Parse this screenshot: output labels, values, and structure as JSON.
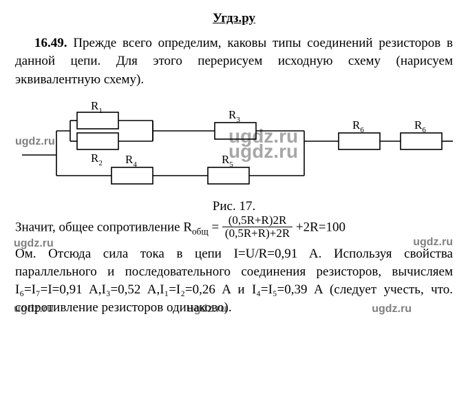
{
  "header": "Угдз.ру",
  "problem_number": "16.49.",
  "para1_tail": "   Прежде всего определим, каковы типы соединений резисторов в данной цепи. Для этого перерисуем исходную схему (нарисуем эквивалентную схему).",
  "figure": {
    "caption": "Рис. 17.",
    "labels": {
      "r1": "R",
      "r1s": "1",
      "r2": "R",
      "r2s": "2",
      "r3": "R",
      "r3s": "3",
      "r4": "R",
      "r4s": "4",
      "r5": "R",
      "r5s": "5",
      "r6a": "R",
      "r6as": "6",
      "r6b": "R",
      "r6bs": "6"
    },
    "stroke": "#000",
    "stroke_width": 1.6,
    "label_fontsize": 17,
    "sub_fontsize": 11
  },
  "after_fig_a": "Значит, общее сопротивление R",
  "after_fig_a_sub": "общ",
  "after_fig_eq": "= ",
  "frac_num": "(0,5R+R)2R",
  "frac_den": "(0,5R+R)+2R",
  "after_fig_b": " +2R=100",
  "para3": "Ом. Отсюда сила тока в цепи I=U/R=0,91 A. Используя свойства параллельного и последовательного соединения резисторов, вычисляем I₆=I₇=I=0,91 A,I₃=0,52 A,I₁=I₂=0,26 A и I₄=I₅=0,39 A (следует учесть, что. сопротивление резисторов одинаково).",
  "watermarks": {
    "small": "ugdz.ru",
    "big": "ugdz.ru"
  }
}
